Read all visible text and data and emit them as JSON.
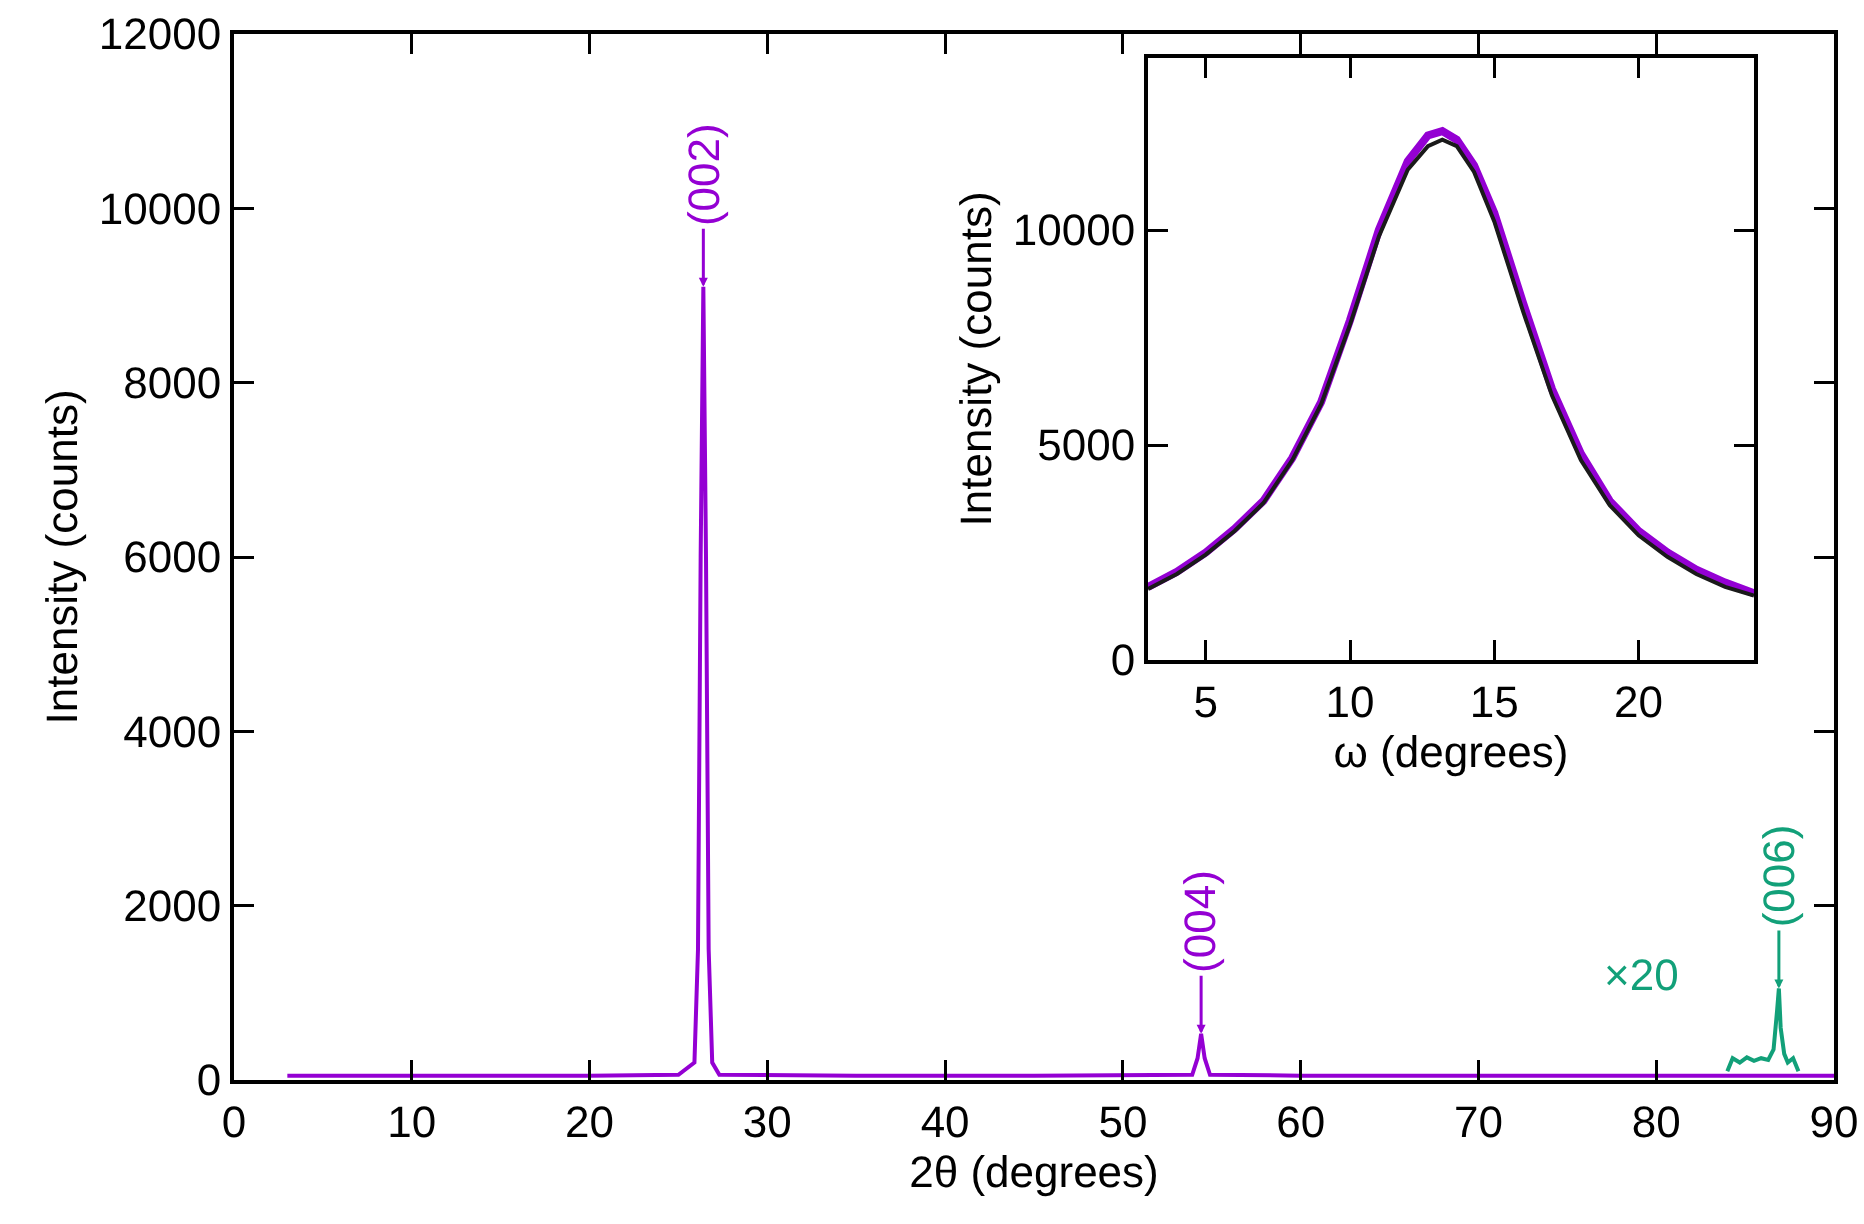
{
  "chart_data": [
    {
      "type": "line",
      "xlabel": "2θ (degrees)",
      "ylabel": "Intensity (counts)",
      "xlim": [
        0,
        90
      ],
      "ylim": [
        0,
        12000
      ],
      "xticks": [
        0,
        10,
        20,
        30,
        40,
        50,
        60,
        70,
        80,
        90
      ],
      "yticks": [
        0,
        2000,
        4000,
        6000,
        8000,
        10000,
        12000
      ],
      "series": [
        {
          "color": "#9400d3",
          "x": [
            3,
            10,
            20,
            25,
            25.9,
            26.1,
            26.25,
            26.4,
            26.55,
            26.7,
            26.9,
            27.3,
            35,
            45,
            53.9,
            54.2,
            54.4,
            54.6,
            54.9,
            60,
            70,
            80,
            90
          ],
          "values": [
            50,
            50,
            50,
            60,
            200,
            1500,
            6000,
            9100,
            6000,
            1500,
            200,
            60,
            50,
            50,
            60,
            250,
            530,
            250,
            60,
            50,
            50,
            50,
            50
          ]
        },
        {
          "color": "#12a079",
          "x": [
            84,
            84.3,
            84.7,
            85.1,
            85.5,
            85.9,
            86.3,
            86.6,
            86.8,
            86.9,
            87,
            87.2,
            87.4,
            87.7,
            88
          ],
          "values": [
            100,
            250,
            200,
            260,
            220,
            250,
            230,
            350,
            800,
            1050,
            600,
            300,
            200,
            250,
            100
          ]
        }
      ],
      "annotations": [
        {
          "text": "(002)",
          "x": 26.4,
          "y": 9100
        },
        {
          "text": "(004)",
          "x": 54.4,
          "y": 530
        },
        {
          "text": "(006)",
          "x": 86.9,
          "y": 1050
        },
        "×20"
      ]
    },
    {
      "type": "line",
      "xlabel": "ω (degrees)",
      "ylabel": "Intensity (counts)",
      "xlim": [
        3,
        24
      ],
      "ylim": [
        0,
        14000
      ],
      "xticks": [
        5,
        10,
        15,
        20
      ],
      "yticks": [
        0,
        5000,
        10000
      ],
      "series": [
        {
          "color": "#9400d3",
          "x": [
            3,
            4,
            5,
            6,
            7,
            8,
            9,
            10,
            11,
            12,
            12.7,
            13.2,
            13.7,
            14.3,
            15,
            16,
            17,
            18,
            19,
            20,
            21,
            22,
            23,
            24
          ],
          "values": [
            1700,
            2050,
            2500,
            3050,
            3700,
            4700,
            6000,
            7900,
            10000,
            11600,
            12200,
            12300,
            12100,
            11500,
            10400,
            8300,
            6300,
            4800,
            3700,
            3000,
            2500,
            2100,
            1800,
            1550
          ]
        },
        {
          "color": "#1a1a1a",
          "x": [
            3,
            4,
            5,
            6,
            7,
            8,
            9,
            10,
            11,
            12,
            12.7,
            13.2,
            13.7,
            14.3,
            15,
            16,
            17,
            18,
            19,
            20,
            21,
            22,
            23,
            24
          ],
          "values": [
            1650,
            2000,
            2450,
            3000,
            3650,
            4650,
            5950,
            7800,
            9850,
            11400,
            11950,
            12100,
            11950,
            11350,
            10200,
            8100,
            6150,
            4650,
            3600,
            2900,
            2400,
            2000,
            1700,
            1500
          ]
        }
      ]
    }
  ]
}
